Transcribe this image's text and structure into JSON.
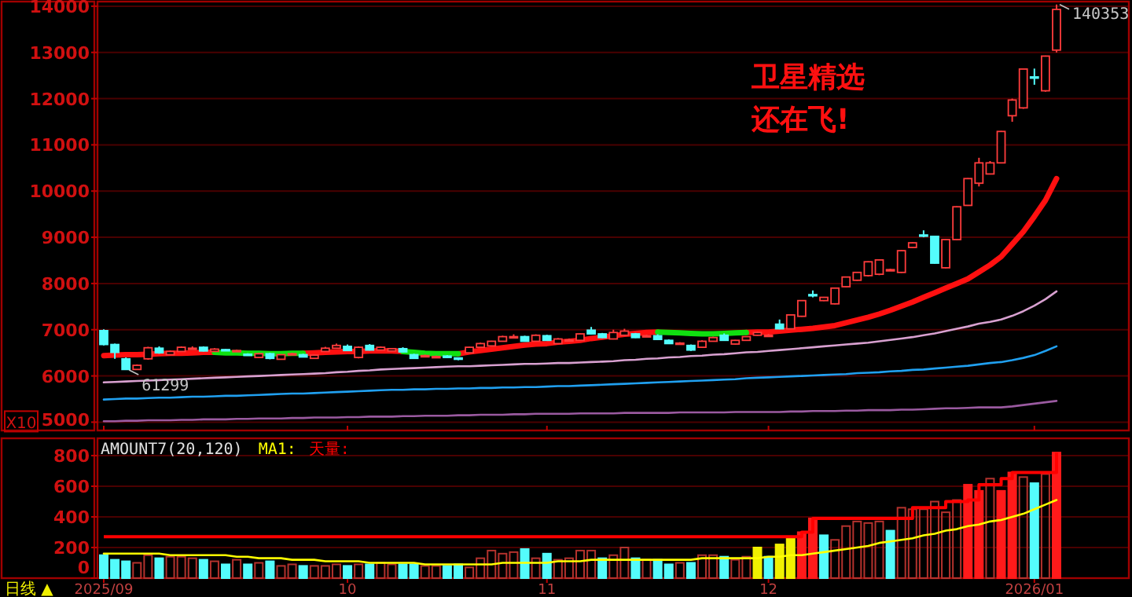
{
  "chart_data": [
    {
      "type": "candlestick",
      "categories": [
        "2025/09",
        null,
        null,
        null,
        null,
        null,
        null,
        null,
        null,
        null,
        null,
        null,
        null,
        null,
        null,
        null,
        null,
        null,
        null,
        null,
        null,
        null,
        "10",
        null,
        null,
        null,
        null,
        null,
        null,
        null,
        null,
        null,
        null,
        null,
        null,
        null,
        null,
        null,
        null,
        null,
        "11",
        null,
        null,
        null,
        null,
        null,
        null,
        null,
        null,
        null,
        null,
        null,
        null,
        null,
        null,
        null,
        null,
        null,
        null,
        null,
        "12",
        null,
        null,
        null,
        null,
        null,
        null,
        null,
        null,
        null,
        null,
        null,
        null,
        null,
        null,
        null,
        null,
        null,
        null,
        null,
        null,
        null,
        null,
        null,
        "2026/01",
        null,
        null
      ],
      "ohlc": [
        [
          6980,
          7010,
          6660,
          6680
        ],
        [
          6680,
          6700,
          6370,
          6510
        ],
        [
          6370,
          6400,
          6129.9,
          6140
        ],
        [
          6140,
          6250,
          6140,
          6230
        ],
        [
          6370,
          6630,
          6350,
          6610
        ],
        [
          6600,
          6640,
          6480,
          6500
        ],
        [
          6460,
          6550,
          6450,
          6530
        ],
        [
          6530,
          6640,
          6520,
          6620
        ],
        [
          6600,
          6640,
          6570,
          6600
        ],
        [
          6620,
          6640,
          6530,
          6540
        ],
        [
          6530,
          6600,
          6520,
          6580
        ],
        [
          6570,
          6580,
          6540,
          6560
        ],
        [
          6550,
          6570,
          6530,
          6550
        ],
        [
          6470,
          6490,
          6440,
          6450
        ],
        [
          6400,
          6500,
          6390,
          6480
        ],
        [
          6480,
          6500,
          6360,
          6380
        ],
        [
          6360,
          6470,
          6350,
          6460
        ],
        [
          6480,
          6500,
          6460,
          6480
        ],
        [
          6460,
          6480,
          6400,
          6410
        ],
        [
          6380,
          6460,
          6370,
          6450
        ],
        [
          6530,
          6630,
          6520,
          6600
        ],
        [
          6600,
          6700,
          6590,
          6660
        ],
        [
          6640,
          6680,
          6540,
          6550
        ],
        [
          6400,
          6640,
          6380,
          6620
        ],
        [
          6660,
          6690,
          6550,
          6560
        ],
        [
          6560,
          6640,
          6550,
          6620
        ],
        [
          6540,
          6600,
          6530,
          6590
        ],
        [
          6590,
          6620,
          6510,
          6520
        ],
        [
          6460,
          6480,
          6370,
          6380
        ],
        [
          6440,
          6460,
          6420,
          6440
        ],
        [
          6420,
          6440,
          6400,
          6420
        ],
        [
          6430,
          6450,
          6390,
          6400
        ],
        [
          6390,
          6400,
          6340,
          6360
        ],
        [
          6500,
          6630,
          6490,
          6620
        ],
        [
          6620,
          6720,
          6610,
          6700
        ],
        [
          6650,
          6760,
          6640,
          6750
        ],
        [
          6750,
          6870,
          6740,
          6850
        ],
        [
          6850,
          6900,
          6830,
          6850
        ],
        [
          6850,
          6870,
          6740,
          6750
        ],
        [
          6750,
          6900,
          6740,
          6880
        ],
        [
          6870,
          6890,
          6760,
          6770
        ],
        [
          6700,
          6820,
          6690,
          6800
        ],
        [
          6780,
          6810,
          6760,
          6780
        ],
        [
          6770,
          6920,
          6760,
          6910
        ],
        [
          6990,
          7060,
          6900,
          6910
        ],
        [
          6910,
          6930,
          6820,
          6830
        ],
        [
          6800,
          7000,
          6790,
          6940
        ],
        [
          6880,
          7020,
          6870,
          6970
        ],
        [
          6910,
          6930,
          6820,
          6830
        ],
        [
          6870,
          6890,
          6850,
          6870
        ],
        [
          6870,
          6900,
          6780,
          6790
        ],
        [
          6770,
          6790,
          6690,
          6700
        ],
        [
          6710,
          6730,
          6690,
          6710
        ],
        [
          6660,
          6680,
          6540,
          6560
        ],
        [
          6620,
          6770,
          6610,
          6750
        ],
        [
          6750,
          6850,
          6740,
          6830
        ],
        [
          6880,
          6920,
          6760,
          6770
        ],
        [
          6690,
          6780,
          6680,
          6770
        ],
        [
          6770,
          6860,
          6760,
          6850
        ],
        [
          6880,
          6960,
          6870,
          6940
        ],
        [
          6880,
          6910,
          6860,
          6880
        ],
        [
          7120,
          7220,
          7010,
          7020
        ],
        [
          7020,
          7330,
          7010,
          7320
        ],
        [
          7290,
          7640,
          7280,
          7630
        ],
        [
          7760,
          7850,
          7700,
          7750
        ],
        [
          7630,
          7710,
          7620,
          7700
        ],
        [
          7560,
          7910,
          7550,
          7900
        ],
        [
          7930,
          8150,
          7920,
          8140
        ],
        [
          8070,
          8250,
          8060,
          8240
        ],
        [
          8170,
          8480,
          8150,
          8470
        ],
        [
          8200,
          8520,
          8180,
          8510
        ],
        [
          8300,
          8320,
          8280,
          8300
        ],
        [
          8240,
          8720,
          8230,
          8710
        ],
        [
          8780,
          8890,
          8770,
          8880
        ],
        [
          9050,
          9150,
          9000,
          9040
        ],
        [
          9020,
          9030,
          8430,
          8440
        ],
        [
          8340,
          8960,
          8330,
          8950
        ],
        [
          8950,
          9670,
          8940,
          9660
        ],
        [
          9690,
          10280,
          9680,
          10270
        ],
        [
          10170,
          10720,
          10100,
          10610
        ],
        [
          10370,
          10650,
          10360,
          10610
        ],
        [
          10610,
          11300,
          10600,
          11290
        ],
        [
          11630,
          12000,
          11500,
          11970
        ],
        [
          11800,
          12650,
          11780,
          12640
        ],
        [
          12470,
          12650,
          12300,
          12460
        ],
        [
          12170,
          12930,
          12150,
          12920
        ],
        [
          13050,
          14035.3,
          13000,
          13930
        ]
      ],
      "colors": [
        "#54fcfc",
        "#54fcfc",
        "#54fcfc",
        "#ff3c3c",
        "#ff3c3c",
        "#54fcfc",
        "#ff3c3c",
        "#ff3c3c",
        "#ff3c3c",
        "#54fcfc",
        "#ff3c3c",
        "#54fcfc",
        "#ff3c3c",
        "#54fcfc",
        "#ff3c3c",
        "#54fcfc",
        "#ff3c3c",
        "#ff3c3c",
        "#54fcfc",
        "#ff3c3c",
        "#ff3c3c",
        "#ff3c3c",
        "#54fcfc",
        "#ff3c3c",
        "#54fcfc",
        "#ff3c3c",
        "#ff3c3c",
        "#54fcfc",
        "#54fcfc",
        "#ff3c3c",
        "#ff3c3c",
        "#54fcfc",
        "#54fcfc",
        "#ff3c3c",
        "#ff3c3c",
        "#ff3c3c",
        "#ff3c3c",
        "#ff3c3c",
        "#54fcfc",
        "#ff3c3c",
        "#54fcfc",
        "#ff3c3c",
        "#ff3c3c",
        "#ff3c3c",
        "#54fcfc",
        "#54fcfc",
        "#ff3c3c",
        "#ff3c3c",
        "#54fcfc",
        "#ff3c3c",
        "#54fcfc",
        "#54fcfc",
        "#ff3c3c",
        "#54fcfc",
        "#ff3c3c",
        "#ff3c3c",
        "#54fcfc",
        "#ff3c3c",
        "#ff3c3c",
        "#ff3c3c",
        "#ff3c3c",
        "#54fcfc",
        "#ff3c3c",
        "#ff3c3c",
        "#54fcfc",
        "#ff3c3c",
        "#ff3c3c",
        "#ff3c3c",
        "#ff3c3c",
        "#ff3c3c",
        "#ff3c3c",
        "#ff3c3c",
        "#ff3c3c",
        "#ff3c3c",
        "#54fcfc",
        "#54fcfc",
        "#ff3c3c",
        "#ff3c3c",
        "#ff3c3c",
        "#ff3c3c",
        "#ff3c3c",
        "#ff3c3c",
        "#ff3c3c",
        "#ff3c3c",
        "#54fcfc",
        "#ff3c3c",
        "#ff3c3c"
      ],
      "series": [
        {
          "type": "line",
          "color": "#ff1010",
          "values": [
            6440,
            6450,
            6460,
            6460,
            6470,
            6480,
            6490,
            6490,
            6500,
            6510,
            6510,
            null,
            null,
            null,
            null,
            null,
            null,
            null,
            6490,
            6500,
            6510,
            6520,
            6530,
            6530,
            6540,
            6540,
            6540,
            6530,
            null,
            null,
            null,
            null,
            6480,
            6520,
            6550,
            6580,
            6610,
            6640,
            6670,
            6690,
            6700,
            6730,
            6750,
            6770,
            6810,
            6840,
            6870,
            6900,
            6920,
            6940,
            6950,
            null,
            null,
            null,
            null,
            null,
            null,
            null,
            6940,
            6950,
            6950,
            6970,
            6990,
            7010,
            7030,
            7060,
            7090,
            7150,
            7210,
            7270,
            7340,
            7420,
            7510,
            7600,
            7700,
            7800,
            7900,
            8000,
            8100,
            8250,
            8400,
            8580,
            8850,
            9120,
            9450,
            9800,
            10270
          ]
        },
        {
          "type": "line",
          "color": "#10e010",
          "values": [
            null,
            null,
            null,
            null,
            null,
            null,
            null,
            null,
            null,
            null,
            6510,
            6500,
            6500,
            6490,
            6490,
            6480,
            6480,
            6490,
            6490,
            null,
            null,
            null,
            null,
            null,
            null,
            null,
            null,
            6530,
            6510,
            6490,
            6480,
            6480,
            6480,
            null,
            null,
            null,
            null,
            null,
            null,
            null,
            null,
            null,
            null,
            null,
            null,
            null,
            null,
            null,
            null,
            null,
            6950,
            6940,
            6930,
            6920,
            6910,
            6910,
            6920,
            6930,
            6940,
            null,
            null,
            null,
            null,
            null,
            null,
            null,
            null,
            null,
            null,
            null,
            null,
            null,
            null,
            null,
            null,
            null,
            null,
            null,
            null,
            null,
            null,
            null,
            null,
            null,
            null,
            null,
            null
          ]
        },
        {
          "type": "line",
          "color": "#d8a0d0",
          "values": [
            5860,
            5870,
            5880,
            5890,
            5900,
            5910,
            5920,
            5930,
            5940,
            5950,
            5960,
            5970,
            5980,
            5990,
            6000,
            6010,
            6020,
            6030,
            6040,
            6050,
            6060,
            6080,
            6090,
            6110,
            6120,
            6140,
            6150,
            6160,
            6170,
            6180,
            6190,
            6200,
            6210,
            6210,
            6220,
            6230,
            6240,
            6250,
            6260,
            6260,
            6270,
            6280,
            6280,
            6290,
            6300,
            6310,
            6320,
            6340,
            6350,
            6370,
            6380,
            6400,
            6410,
            6430,
            6440,
            6460,
            6470,
            6490,
            6510,
            6520,
            6540,
            6560,
            6580,
            6600,
            6620,
            6640,
            6660,
            6680,
            6700,
            6720,
            6750,
            6780,
            6810,
            6840,
            6880,
            6920,
            6970,
            7020,
            7070,
            7130,
            7170,
            7220,
            7300,
            7400,
            7520,
            7660,
            7830
          ]
        },
        {
          "type": "line",
          "color": "#20a0f0",
          "values": [
            5490,
            5500,
            5510,
            5510,
            5520,
            5530,
            5530,
            5540,
            5550,
            5550,
            5560,
            5570,
            5570,
            5580,
            5590,
            5600,
            5610,
            5620,
            5620,
            5630,
            5640,
            5650,
            5660,
            5670,
            5680,
            5690,
            5700,
            5700,
            5710,
            5710,
            5720,
            5720,
            5730,
            5730,
            5740,
            5740,
            5750,
            5750,
            5760,
            5760,
            5770,
            5780,
            5780,
            5790,
            5800,
            5810,
            5820,
            5830,
            5840,
            5850,
            5860,
            5870,
            5880,
            5890,
            5900,
            5910,
            5920,
            5930,
            5950,
            5960,
            5970,
            5980,
            5990,
            6000,
            6010,
            6020,
            6030,
            6040,
            6060,
            6070,
            6080,
            6100,
            6110,
            6130,
            6140,
            6160,
            6180,
            6200,
            6220,
            6250,
            6280,
            6300,
            6340,
            6390,
            6450,
            6540,
            6640
          ]
        },
        {
          "type": "line",
          "color": "#9a5aa0",
          "values": [
            5020,
            5020,
            5030,
            5030,
            5040,
            5040,
            5040,
            5050,
            5050,
            5060,
            5060,
            5060,
            5070,
            5070,
            5080,
            5080,
            5080,
            5090,
            5090,
            5100,
            5100,
            5100,
            5110,
            5110,
            5120,
            5120,
            5120,
            5130,
            5130,
            5140,
            5140,
            5140,
            5150,
            5150,
            5160,
            5160,
            5160,
            5170,
            5170,
            5180,
            5180,
            5180,
            5180,
            5190,
            5190,
            5190,
            5190,
            5200,
            5200,
            5200,
            5200,
            5200,
            5210,
            5210,
            5210,
            5210,
            5210,
            5220,
            5220,
            5220,
            5220,
            5220,
            5230,
            5230,
            5240,
            5240,
            5240,
            5250,
            5250,
            5260,
            5260,
            5260,
            5270,
            5270,
            5280,
            5290,
            5300,
            5300,
            5310,
            5320,
            5320,
            5320,
            5340,
            5370,
            5400,
            5430,
            5460
          ]
        }
      ],
      "ylim": [
        4820,
        14100
      ],
      "yticks": [
        5000,
        6000,
        7000,
        8000,
        9000,
        10000,
        11000,
        12000,
        13000,
        14000
      ],
      "grid": "y",
      "tick_labels": "y",
      "annotations": [
        "卫星精选",
        "还在飞!",
        "X10",
        "140353",
        "61299"
      ]
    },
    {
      "type": "bar",
      "title": "AMOUNT7(20,120)",
      "categories": [
        "2025/09",
        null,
        null,
        null,
        null,
        null,
        null,
        null,
        null,
        null,
        null,
        null,
        null,
        null,
        null,
        null,
        null,
        null,
        null,
        null,
        null,
        null,
        "10",
        null,
        null,
        null,
        null,
        null,
        null,
        null,
        null,
        null,
        null,
        null,
        null,
        null,
        null,
        null,
        null,
        null,
        "11",
        null,
        null,
        null,
        null,
        null,
        null,
        null,
        null,
        null,
        null,
        null,
        null,
        null,
        null,
        null,
        null,
        null,
        null,
        null,
        "12",
        null,
        null,
        null,
        null,
        null,
        null,
        null,
        null,
        null,
        null,
        null,
        null,
        null,
        null,
        null,
        null,
        null,
        null,
        null,
        null,
        null,
        null,
        null,
        "2026/01",
        null,
        null
      ],
      "series": [
        {
          "color": "#b4322d",
          "colors": [
            "#54fcfc",
            "#54fcfc",
            "#54fcfc",
            "#b4322d",
            "#b4322d",
            "#54fcfc",
            "#b4322d",
            "#b4322d",
            "#b4322d",
            "#54fcfc",
            "#b4322d",
            "#54fcfc",
            "#b4322d",
            "#54fcfc",
            "#b4322d",
            "#54fcfc",
            "#b4322d",
            "#b4322d",
            "#54fcfc",
            "#b4322d",
            "#b4322d",
            "#b4322d",
            "#54fcfc",
            "#b4322d",
            "#54fcfc",
            "#b4322d",
            "#b4322d",
            "#54fcfc",
            "#54fcfc",
            "#b4322d",
            "#b4322d",
            "#54fcfc",
            "#54fcfc",
            "#b4322d",
            "#b4322d",
            "#b4322d",
            "#b4322d",
            "#b4322d",
            "#54fcfc",
            "#b4322d",
            "#54fcfc",
            "#b4322d",
            "#b4322d",
            "#b4322d",
            "#b4322d",
            "#54fcfc",
            "#b4322d",
            "#b4322d",
            "#54fcfc",
            "#b4322d",
            "#54fcfc",
            "#54fcfc",
            "#b4322d",
            "#54fcfc",
            "#b4322d",
            "#b4322d",
            "#54fcfc",
            "#b4322d",
            "#b4322d",
            "#f0f000",
            "#54fcfc",
            "#f0f000",
            "#f0f000",
            "#ff1a1a",
            "#ff1a1a",
            "#54fcfc",
            "#b4322d",
            "#b4322d",
            "#b4322d",
            "#b4322d",
            "#b4322d",
            "#54fcfc",
            "#b4322d",
            "#b4322d",
            "#b4322d",
            "#b4322d",
            "#b4322d",
            "#b4322d",
            "#ff1a1a",
            "#ff1a1a",
            "#b4322d",
            "#ff1a1a",
            "#ff1a1a",
            "#b4322d",
            "#54fcfc",
            "#b4322d",
            "#ff1a1a"
          ],
          "values": [
            150,
            120,
            110,
            100,
            150,
            130,
            140,
            140,
            130,
            120,
            110,
            90,
            120,
            90,
            100,
            110,
            80,
            90,
            80,
            80,
            80,
            90,
            80,
            90,
            90,
            100,
            90,
            90,
            90,
            80,
            80,
            80,
            90,
            70,
            130,
            180,
            160,
            170,
            190,
            130,
            160,
            120,
            130,
            180,
            180,
            130,
            150,
            200,
            130,
            120,
            120,
            90,
            100,
            100,
            150,
            150,
            140,
            120,
            140,
            200,
            140,
            220,
            260,
            300,
            390,
            280,
            250,
            340,
            370,
            360,
            370,
            310,
            460,
            450,
            450,
            500,
            430,
            510,
            610,
            570,
            650,
            570,
            690,
            660,
            620,
            680,
            820
          ]
        },
        {
          "type": "line",
          "name": "MA1:",
          "color": "#ffff00",
          "values": [
            160,
            160,
            160,
            160,
            160,
            160,
            150,
            150,
            150,
            150,
            150,
            150,
            140,
            140,
            130,
            130,
            130,
            120,
            120,
            120,
            110,
            110,
            110,
            110,
            100,
            100,
            100,
            100,
            100,
            90,
            90,
            90,
            90,
            90,
            90,
            90,
            100,
            100,
            100,
            100,
            100,
            110,
            110,
            110,
            120,
            120,
            120,
            120,
            120,
            120,
            120,
            120,
            120,
            120,
            130,
            130,
            130,
            130,
            130,
            130,
            140,
            140,
            150,
            150,
            160,
            170,
            180,
            190,
            200,
            210,
            230,
            240,
            250,
            260,
            280,
            290,
            310,
            320,
            340,
            350,
            370,
            380,
            400,
            420,
            450,
            480,
            510
          ]
        },
        {
          "type": "step",
          "name": "天量:",
          "color": "#ff0000",
          "values": [
            270,
            270,
            270,
            270,
            270,
            270,
            270,
            270,
            270,
            270,
            270,
            270,
            270,
            270,
            270,
            270,
            270,
            270,
            270,
            270,
            270,
            270,
            270,
            270,
            270,
            270,
            270,
            270,
            270,
            270,
            270,
            270,
            270,
            270,
            270,
            270,
            270,
            270,
            270,
            270,
            270,
            270,
            270,
            270,
            270,
            270,
            270,
            270,
            270,
            270,
            270,
            270,
            270,
            270,
            270,
            270,
            270,
            270,
            270,
            270,
            270,
            270,
            270,
            300,
            390,
            390,
            390,
            390,
            390,
            390,
            390,
            390,
            390,
            460,
            460,
            460,
            500,
            500,
            510,
            610,
            610,
            650,
            690,
            690,
            690,
            690,
            820
          ]
        }
      ],
      "ylim": [
        0,
        913
      ],
      "yticks": [
        0,
        200,
        400,
        600,
        800
      ],
      "grid": "y",
      "legend": "top left",
      "annotations": [
        "日线 ▲"
      ]
    }
  ]
}
